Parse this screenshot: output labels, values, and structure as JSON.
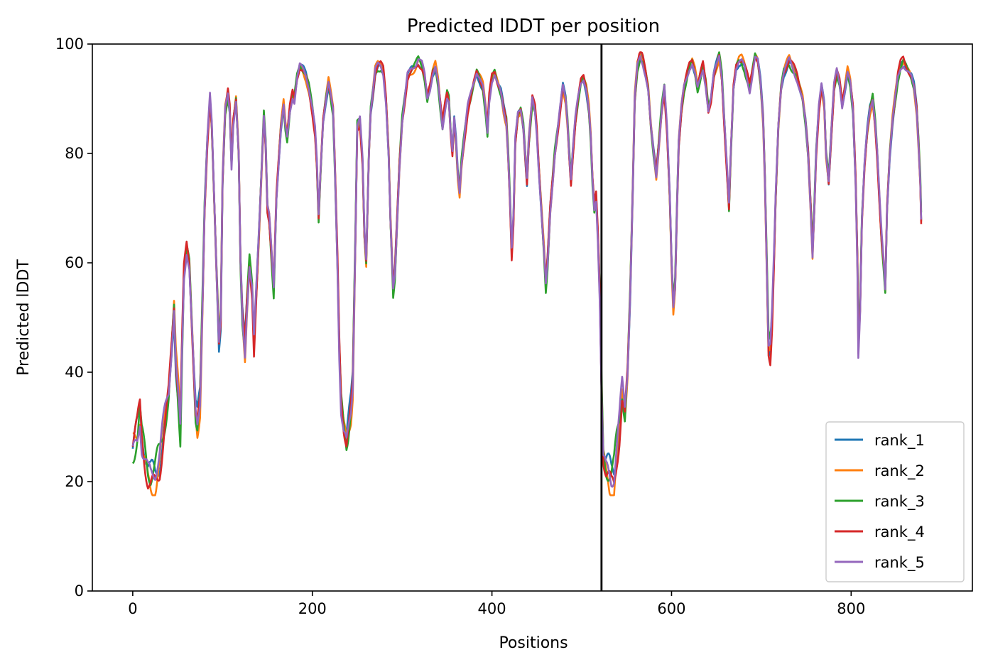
{
  "chart_data": {
    "type": "line",
    "title": "Predicted lDDT per position",
    "xlabel": "Positions",
    "ylabel": "Predicted lDDT",
    "xlim": [
      -45,
      935
    ],
    "ylim": [
      0,
      100
    ],
    "xticks": [
      "0",
      "200",
      "400",
      "600",
      "800"
    ],
    "yticks": [
      "0",
      "20",
      "40",
      "60",
      "80",
      "100"
    ],
    "grid": false,
    "legend_position": "lower right",
    "vline": {
      "x": 522,
      "color": "#000000"
    },
    "series": [
      {
        "name": "rank_1",
        "color": "#1f77b4"
      },
      {
        "name": "rank_2",
        "color": "#ff7f0e"
      },
      {
        "name": "rank_3",
        "color": "#2ca02c"
      },
      {
        "name": "rank_4",
        "color": "#d62728"
      },
      {
        "name": "rank_5",
        "color": "#9467bd"
      }
    ],
    "base_curve": [
      [
        0,
        26
      ],
      [
        5,
        29
      ],
      [
        8,
        33
      ],
      [
        10,
        28
      ],
      [
        13,
        25
      ],
      [
        17,
        21
      ],
      [
        20,
        20
      ],
      [
        25,
        21
      ],
      [
        30,
        24
      ],
      [
        35,
        30
      ],
      [
        40,
        36
      ],
      [
        43,
        44
      ],
      [
        46,
        52
      ],
      [
        48,
        42
      ],
      [
        51,
        35
      ],
      [
        53,
        30
      ],
      [
        55,
        45
      ],
      [
        57,
        58
      ],
      [
        60,
        63
      ],
      [
        63,
        60
      ],
      [
        65,
        52
      ],
      [
        68,
        40
      ],
      [
        70,
        32
      ],
      [
        72,
        30
      ],
      [
        75,
        35
      ],
      [
        78,
        55
      ],
      [
        80,
        70
      ],
      [
        83,
        82
      ],
      [
        86,
        90
      ],
      [
        88,
        85
      ],
      [
        90,
        75
      ],
      [
        93,
        60
      ],
      [
        96,
        46
      ],
      [
        98,
        50
      ],
      [
        100,
        75
      ],
      [
        103,
        88
      ],
      [
        106,
        91
      ],
      [
        108,
        88
      ],
      [
        110,
        78
      ],
      [
        112,
        86
      ],
      [
        115,
        90
      ],
      [
        118,
        80
      ],
      [
        120,
        60
      ],
      [
        122,
        50
      ],
      [
        125,
        44
      ],
      [
        127,
        52
      ],
      [
        130,
        60
      ],
      [
        133,
        55
      ],
      [
        135,
        45
      ],
      [
        137,
        52
      ],
      [
        140,
        63
      ],
      [
        143,
        75
      ],
      [
        146,
        87
      ],
      [
        148,
        82
      ],
      [
        150,
        70
      ],
      [
        152,
        68
      ],
      [
        155,
        60
      ],
      [
        157,
        55
      ],
      [
        160,
        72
      ],
      [
        163,
        80
      ],
      [
        165,
        85
      ],
      [
        168,
        89
      ],
      [
        170,
        85
      ],
      [
        172,
        83
      ],
      [
        175,
        88
      ],
      [
        178,
        91
      ],
      [
        180,
        90
      ],
      [
        183,
        94
      ],
      [
        186,
        96
      ],
      [
        190,
        95
      ],
      [
        193,
        94
      ],
      [
        196,
        92
      ],
      [
        198,
        90
      ],
      [
        200,
        88
      ],
      [
        203,
        84
      ],
      [
        205,
        78
      ],
      [
        207,
        68
      ],
      [
        209,
        76
      ],
      [
        212,
        86
      ],
      [
        215,
        90
      ],
      [
        218,
        93
      ],
      [
        220,
        91
      ],
      [
        223,
        88
      ],
      [
        225,
        78
      ],
      [
        228,
        60
      ],
      [
        230,
        45
      ],
      [
        232,
        35
      ],
      [
        235,
        30
      ],
      [
        238,
        27
      ],
      [
        240,
        29
      ],
      [
        243,
        33
      ],
      [
        245,
        38
      ],
      [
        248,
        65
      ],
      [
        250,
        85
      ],
      [
        253,
        86
      ],
      [
        256,
        78
      ],
      [
        258,
        65
      ],
      [
        260,
        60
      ],
      [
        263,
        80
      ],
      [
        265,
        88
      ],
      [
        268,
        92
      ],
      [
        270,
        95
      ],
      [
        273,
        96
      ],
      [
        276,
        96
      ],
      [
        279,
        95
      ],
      [
        282,
        90
      ],
      [
        285,
        80
      ],
      [
        287,
        68
      ],
      [
        290,
        55
      ],
      [
        292,
        58
      ],
      [
        295,
        70
      ],
      [
        297,
        78
      ],
      [
        300,
        86
      ],
      [
        303,
        90
      ],
      [
        306,
        94
      ],
      [
        310,
        95
      ],
      [
        315,
        96
      ],
      [
        318,
        97
      ],
      [
        322,
        96
      ],
      [
        325,
        94
      ],
      [
        328,
        90
      ],
      [
        331,
        92
      ],
      [
        334,
        95
      ],
      [
        337,
        96
      ],
      [
        340,
        93
      ],
      [
        343,
        88
      ],
      [
        345,
        85
      ],
      [
        348,
        89
      ],
      [
        350,
        91
      ],
      [
        352,
        90
      ],
      [
        354,
        84
      ],
      [
        356,
        80
      ],
      [
        358,
        86
      ],
      [
        360,
        82
      ],
      [
        362,
        76
      ],
      [
        364,
        73
      ],
      [
        366,
        78
      ],
      [
        370,
        84
      ],
      [
        373,
        88
      ],
      [
        376,
        90
      ],
      [
        380,
        93
      ],
      [
        383,
        95
      ],
      [
        386,
        94
      ],
      [
        390,
        92
      ],
      [
        393,
        88
      ],
      [
        395,
        84
      ],
      [
        397,
        90
      ],
      [
        400,
        94
      ],
      [
        403,
        95
      ],
      [
        406,
        93
      ],
      [
        410,
        91
      ],
      [
        413,
        88
      ],
      [
        416,
        86
      ],
      [
        418,
        80
      ],
      [
        420,
        72
      ],
      [
        422,
        62
      ],
      [
        424,
        68
      ],
      [
        426,
        82
      ],
      [
        429,
        87
      ],
      [
        432,
        88
      ],
      [
        435,
        85
      ],
      [
        437,
        80
      ],
      [
        439,
        75
      ],
      [
        441,
        82
      ],
      [
        443,
        86
      ],
      [
        445,
        90
      ],
      [
        448,
        88
      ],
      [
        450,
        84
      ],
      [
        452,
        78
      ],
      [
        455,
        70
      ],
      [
        458,
        62
      ],
      [
        460,
        56
      ],
      [
        462,
        60
      ],
      [
        465,
        70
      ],
      [
        468,
        76
      ],
      [
        470,
        80
      ],
      [
        473,
        84
      ],
      [
        476,
        88
      ],
      [
        479,
        92
      ],
      [
        482,
        90
      ],
      [
        484,
        86
      ],
      [
        486,
        80
      ],
      [
        488,
        75
      ],
      [
        490,
        80
      ],
      [
        493,
        86
      ],
      [
        496,
        90
      ],
      [
        499,
        93
      ],
      [
        502,
        94
      ],
      [
        505,
        92
      ],
      [
        508,
        88
      ],
      [
        510,
        83
      ],
      [
        512,
        75
      ],
      [
        514,
        70
      ],
      [
        516,
        72
      ],
      [
        518,
        65
      ],
      [
        520,
        55
      ],
      [
        522,
        38
      ],
      [
        524,
        25
      ],
      [
        527,
        22
      ],
      [
        530,
        21
      ],
      [
        533,
        20
      ],
      [
        536,
        21
      ],
      [
        539,
        26
      ],
      [
        542,
        30
      ],
      [
        545,
        36
      ],
      [
        548,
        32
      ],
      [
        551,
        40
      ],
      [
        554,
        55
      ],
      [
        557,
        75
      ],
      [
        559,
        90
      ],
      [
        562,
        96
      ],
      [
        565,
        98
      ],
      [
        568,
        97
      ],
      [
        571,
        95
      ],
      [
        574,
        92
      ],
      [
        577,
        85
      ],
      [
        580,
        80
      ],
      [
        583,
        76
      ],
      [
        586,
        82
      ],
      [
        589,
        88
      ],
      [
        592,
        92
      ],
      [
        595,
        84
      ],
      [
        598,
        72
      ],
      [
        600,
        60
      ],
      [
        602,
        52
      ],
      [
        604,
        56
      ],
      [
        606,
        70
      ],
      [
        608,
        82
      ],
      [
        611,
        88
      ],
      [
        614,
        92
      ],
      [
        617,
        94
      ],
      [
        620,
        96
      ],
      [
        623,
        97
      ],
      [
        626,
        95
      ],
      [
        629,
        92
      ],
      [
        632,
        94
      ],
      [
        635,
        96
      ],
      [
        638,
        93
      ],
      [
        641,
        88
      ],
      [
        644,
        90
      ],
      [
        647,
        94
      ],
      [
        650,
        96
      ],
      [
        653,
        98
      ],
      [
        656,
        94
      ],
      [
        659,
        85
      ],
      [
        662,
        76
      ],
      [
        664,
        70
      ],
      [
        666,
        80
      ],
      [
        669,
        92
      ],
      [
        672,
        96
      ],
      [
        675,
        97
      ],
      [
        678,
        97
      ],
      [
        681,
        96
      ],
      [
        684,
        94
      ],
      [
        687,
        92
      ],
      [
        690,
        95
      ],
      [
        693,
        98
      ],
      [
        696,
        97
      ],
      [
        699,
        93
      ],
      [
        702,
        86
      ],
      [
        704,
        75
      ],
      [
        706,
        60
      ],
      [
        708,
        45
      ],
      [
        710,
        44
      ],
      [
        712,
        50
      ],
      [
        714,
        60
      ],
      [
        716,
        72
      ],
      [
        719,
        85
      ],
      [
        722,
        92
      ],
      [
        725,
        95
      ],
      [
        728,
        96
      ],
      [
        731,
        97
      ],
      [
        734,
        96
      ],
      [
        737,
        95
      ],
      [
        740,
        94
      ],
      [
        743,
        92
      ],
      [
        746,
        90
      ],
      [
        749,
        86
      ],
      [
        752,
        80
      ],
      [
        755,
        70
      ],
      [
        757,
        62
      ],
      [
        759,
        70
      ],
      [
        761,
        80
      ],
      [
        764,
        88
      ],
      [
        767,
        92
      ],
      [
        770,
        89
      ],
      [
        772,
        80
      ],
      [
        775,
        75
      ],
      [
        778,
        84
      ],
      [
        781,
        92
      ],
      [
        784,
        95
      ],
      [
        787,
        93
      ],
      [
        790,
        89
      ],
      [
        793,
        92
      ],
      [
        796,
        95
      ],
      [
        799,
        93
      ],
      [
        802,
        88
      ],
      [
        805,
        75
      ],
      [
        807,
        60
      ],
      [
        808,
        45
      ],
      [
        810,
        52
      ],
      [
        812,
        68
      ],
      [
        815,
        78
      ],
      [
        818,
        84
      ],
      [
        821,
        88
      ],
      [
        824,
        90
      ],
      [
        827,
        85
      ],
      [
        829,
        80
      ],
      [
        832,
        70
      ],
      [
        834,
        64
      ],
      [
        836,
        60
      ],
      [
        838,
        55
      ],
      [
        840,
        70
      ],
      [
        843,
        80
      ],
      [
        846,
        86
      ],
      [
        849,
        90
      ],
      [
        852,
        94
      ],
      [
        855,
        96
      ],
      [
        858,
        97
      ],
      [
        861,
        96
      ],
      [
        864,
        95
      ],
      [
        867,
        94
      ],
      [
        870,
        92
      ],
      [
        873,
        88
      ],
      [
        875,
        82
      ],
      [
        877,
        75
      ],
      [
        878,
        68
      ]
    ]
  }
}
